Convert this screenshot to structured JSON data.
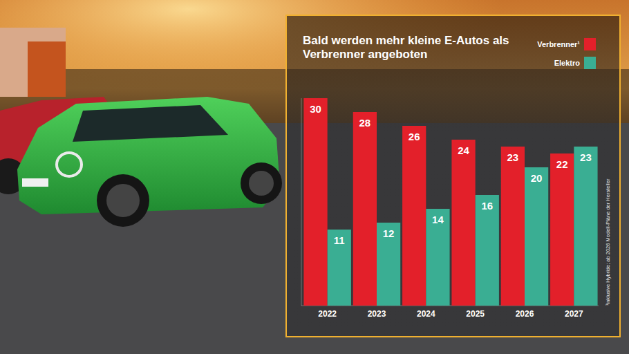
{
  "chart_data": {
    "type": "bar",
    "title": "Bald werden mehr kleine E-Autos als Verbrenner angeboten",
    "categories": [
      "2022",
      "2023",
      "2024",
      "2025",
      "2026",
      "2027"
    ],
    "series": [
      {
        "name": "Verbrenner¹",
        "color": "#e3202a",
        "values": [
          30,
          28,
          26,
          24,
          23,
          22
        ]
      },
      {
        "name": "Elektro",
        "color": "#3aae93",
        "values": [
          11,
          12,
          14,
          16,
          20,
          23
        ]
      }
    ],
    "ylim": [
      0,
      30
    ],
    "yticks": [],
    "tick_labels": "x",
    "data_labels": true,
    "legend": "upper right",
    "annotations": [
      "¹inklusive Hybride; ab 2026 Modell-Pläne der Hersteller"
    ]
  }
}
